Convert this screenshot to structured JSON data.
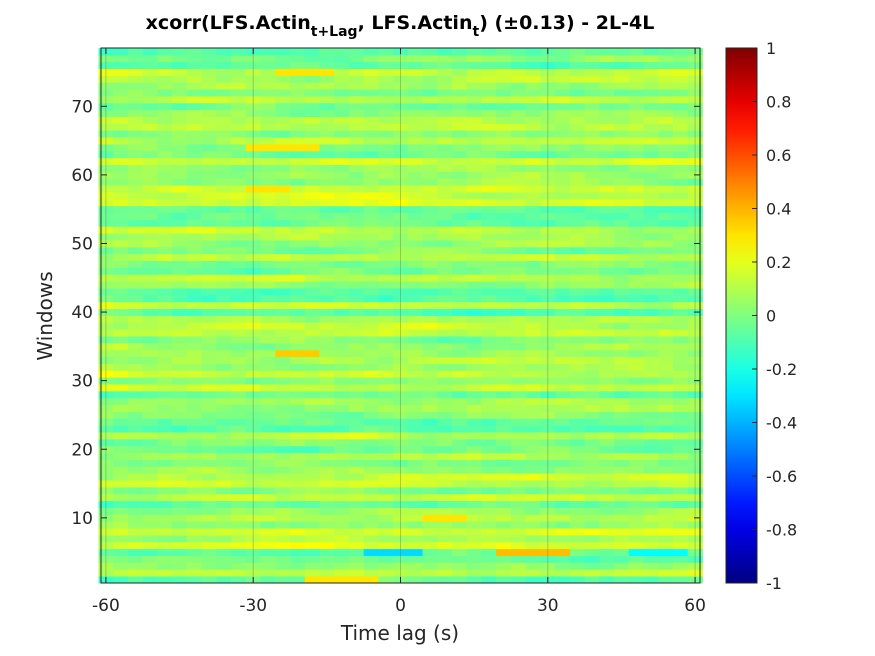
{
  "chart_data": {
    "type": "heatmap",
    "title": {
      "prefix": "xcorr(LFS.Actin",
      "sub1": "t+Lag",
      "middle": ", LFS.Actin",
      "sub2": "t",
      "suffix": ")  (±0.13) - 2L-4L"
    },
    "xlabel": "Time lag (s)",
    "ylabel": "Windows",
    "xlim": [
      -61,
      61
    ],
    "ylim": [
      0.5,
      78.5
    ],
    "lag_step": 3,
    "n_windows": 78,
    "x_ticks": [
      -60,
      -30,
      0,
      30,
      60
    ],
    "x_tick_labels": [
      "-60",
      "-30",
      "0",
      "30",
      "60"
    ],
    "y_ticks": [
      10,
      20,
      30,
      40,
      50,
      60,
      70
    ],
    "y_tick_labels": [
      "10",
      "20",
      "30",
      "40",
      "50",
      "60",
      "70"
    ],
    "colormap": "jet",
    "clim": [
      -1,
      1
    ],
    "colorbar_ticks": [
      1,
      0.8,
      0.6,
      0.4,
      0.2,
      0,
      -0.2,
      -0.4,
      -0.6,
      -0.8,
      -1
    ],
    "colorbar_tick_labels": [
      "1",
      "0.8",
      "0.6",
      "0.4",
      "0.2",
      "0",
      "-0.2",
      "-0.4",
      "-0.6",
      "-0.8",
      "-1"
    ],
    "value_range_typical": [
      -0.3,
      0.4
    ],
    "notable_cells": [
      {
        "window": 5,
        "lag_start": 21,
        "lag_end": 33,
        "value": 0.38
      },
      {
        "window": 5,
        "lag_start": -6,
        "lag_end": 3,
        "value": -0.32
      },
      {
        "window": 5,
        "lag_start": 48,
        "lag_end": 57,
        "value": -0.25
      },
      {
        "window": 10,
        "lag_start": 6,
        "lag_end": 12,
        "value": 0.3
      },
      {
        "window": 1,
        "lag_start": -18,
        "lag_end": -6,
        "value": 0.3
      },
      {
        "window": 75,
        "lag_start": -24,
        "lag_end": -15,
        "value": 0.3
      },
      {
        "window": 34,
        "lag_start": -24,
        "lag_end": -18,
        "value": 0.35
      },
      {
        "window": 64,
        "lag_start": -30,
        "lag_end": -18,
        "value": 0.3
      },
      {
        "window": 58,
        "lag_start": -30,
        "lag_end": -24,
        "value": 0.3
      }
    ],
    "grid": true
  }
}
